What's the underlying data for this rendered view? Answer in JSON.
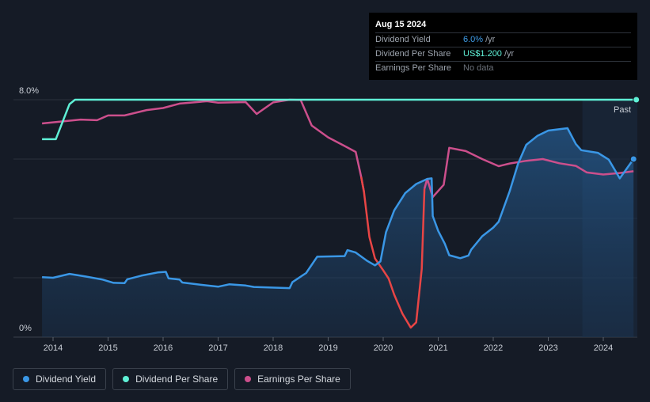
{
  "chart_data": {
    "type": "line",
    "x_ticks": [
      "2014",
      "2015",
      "2016",
      "2017",
      "2018",
      "2019",
      "2020",
      "2021",
      "2022",
      "2023",
      "2024"
    ],
    "y_tick_labels": {
      "top": "8.0%",
      "bottom": "0%"
    },
    "ylim": [
      0,
      8
    ],
    "xlim": [
      2013.5,
      2024.62
    ],
    "forecast_label": "Past",
    "series": [
      {
        "name": "Dividend Yield",
        "color": "#3a97e6",
        "points": [
          [
            2013.8,
            2.02
          ],
          [
            2014.0,
            2.0
          ],
          [
            2014.3,
            2.13
          ],
          [
            2014.6,
            2.04
          ],
          [
            2014.9,
            1.94
          ],
          [
            2015.1,
            1.83
          ],
          [
            2015.3,
            1.82
          ],
          [
            2015.35,
            1.95
          ],
          [
            2015.6,
            2.07
          ],
          [
            2015.9,
            2.18
          ],
          [
            2016.05,
            2.2
          ],
          [
            2016.1,
            1.98
          ],
          [
            2016.3,
            1.94
          ],
          [
            2016.35,
            1.84
          ],
          [
            2016.8,
            1.74
          ],
          [
            2017.0,
            1.7
          ],
          [
            2017.2,
            1.78
          ],
          [
            2017.5,
            1.74
          ],
          [
            2017.65,
            1.69
          ],
          [
            2018.3,
            1.65
          ],
          [
            2018.35,
            1.85
          ],
          [
            2018.6,
            2.16
          ],
          [
            2018.8,
            2.71
          ],
          [
            2019.3,
            2.73
          ],
          [
            2019.35,
            2.93
          ],
          [
            2019.5,
            2.85
          ],
          [
            2019.7,
            2.58
          ],
          [
            2019.85,
            2.42
          ],
          [
            2019.95,
            2.55
          ],
          [
            2020.05,
            3.53
          ],
          [
            2020.2,
            4.27
          ],
          [
            2020.4,
            4.85
          ],
          [
            2020.6,
            5.16
          ],
          [
            2020.8,
            5.33
          ],
          [
            2020.88,
            5.35
          ],
          [
            2020.9,
            4.08
          ],
          [
            2021.0,
            3.58
          ],
          [
            2021.12,
            3.15
          ],
          [
            2021.2,
            2.76
          ],
          [
            2021.4,
            2.66
          ],
          [
            2021.55,
            2.75
          ],
          [
            2021.6,
            2.95
          ],
          [
            2021.8,
            3.4
          ],
          [
            2022.0,
            3.69
          ],
          [
            2022.1,
            3.89
          ],
          [
            2022.3,
            4.92
          ],
          [
            2022.45,
            5.84
          ],
          [
            2022.6,
            6.48
          ],
          [
            2022.8,
            6.78
          ],
          [
            2023.0,
            6.96
          ],
          [
            2023.35,
            7.04
          ],
          [
            2023.5,
            6.51
          ],
          [
            2023.6,
            6.3
          ],
          [
            2023.9,
            6.21
          ],
          [
            2024.1,
            5.98
          ],
          [
            2024.3,
            5.35
          ],
          [
            2024.4,
            5.61
          ],
          [
            2024.55,
            6.0
          ]
        ]
      },
      {
        "name": "Dividend Per Share",
        "color": "#5ff0d6",
        "points": [
          [
            2013.8,
            6.67
          ],
          [
            2014.05,
            6.67
          ],
          [
            2014.3,
            7.85
          ],
          [
            2014.4,
            8.0
          ],
          [
            2024.6,
            8.0
          ]
        ]
      },
      {
        "name": "Earnings Per Share",
        "color": "#cc4f8c",
        "negative_color": "#e84545",
        "points": [
          [
            2013.8,
            7.2
          ],
          [
            2014.5,
            7.33
          ],
          [
            2014.8,
            7.31
          ],
          [
            2015.0,
            7.47
          ],
          [
            2015.3,
            7.47
          ],
          [
            2015.7,
            7.65
          ],
          [
            2016.0,
            7.72
          ],
          [
            2016.3,
            7.87
          ],
          [
            2016.8,
            7.95
          ],
          [
            2017.0,
            7.9
          ],
          [
            2017.5,
            7.92
          ],
          [
            2017.7,
            7.52
          ],
          [
            2017.8,
            7.65
          ],
          [
            2018.0,
            7.91
          ],
          [
            2018.3,
            8.0
          ],
          [
            2018.5,
            7.99
          ],
          [
            2018.7,
            7.13
          ],
          [
            2019.0,
            6.73
          ],
          [
            2019.3,
            6.44
          ],
          [
            2019.5,
            6.24
          ],
          [
            2019.6,
            5.4
          ],
          [
            2019.65,
            4.9
          ],
          [
            2019.75,
            3.37
          ],
          [
            2019.85,
            2.65
          ],
          [
            2020.0,
            2.25
          ],
          [
            2020.1,
            1.97
          ],
          [
            2020.2,
            1.43
          ],
          [
            2020.35,
            0.79
          ],
          [
            2020.5,
            0.32
          ],
          [
            2020.6,
            0.5
          ],
          [
            2020.7,
            2.3
          ],
          [
            2020.75,
            5.0
          ],
          [
            2020.8,
            5.33
          ],
          [
            2020.9,
            4.72
          ],
          [
            2021.1,
            5.13
          ],
          [
            2021.2,
            6.38
          ],
          [
            2021.5,
            6.27
          ],
          [
            2021.8,
            6.0
          ],
          [
            2022.1,
            5.76
          ],
          [
            2022.3,
            5.85
          ],
          [
            2022.6,
            5.94
          ],
          [
            2022.9,
            6.0
          ],
          [
            2023.2,
            5.86
          ],
          [
            2023.5,
            5.77
          ],
          [
            2023.7,
            5.55
          ],
          [
            2024.0,
            5.48
          ],
          [
            2024.3,
            5.53
          ],
          [
            2024.55,
            5.59
          ]
        ]
      }
    ],
    "eps_highlight_range": [
      2019.62,
      2020.76
    ]
  },
  "tooltip": {
    "date": "Aug 15 2024",
    "rows": [
      {
        "label": "Dividend Yield",
        "value": "6.0%",
        "unit": "/yr"
      },
      {
        "label": "Dividend Per Share",
        "value": "US$1.200",
        "unit": "/yr"
      },
      {
        "label": "Earnings Per Share",
        "value": "No data",
        "unit": ""
      }
    ]
  },
  "legend": [
    {
      "label": "Dividend Yield",
      "color": "#3a97e6"
    },
    {
      "label": "Dividend Per Share",
      "color": "#5ff0d6"
    },
    {
      "label": "Earnings Per Share",
      "color": "#cc4f8c"
    }
  ],
  "colors": {
    "background": "#151b26",
    "grid": "#2a313c",
    "past_region": "#1b2c40"
  }
}
